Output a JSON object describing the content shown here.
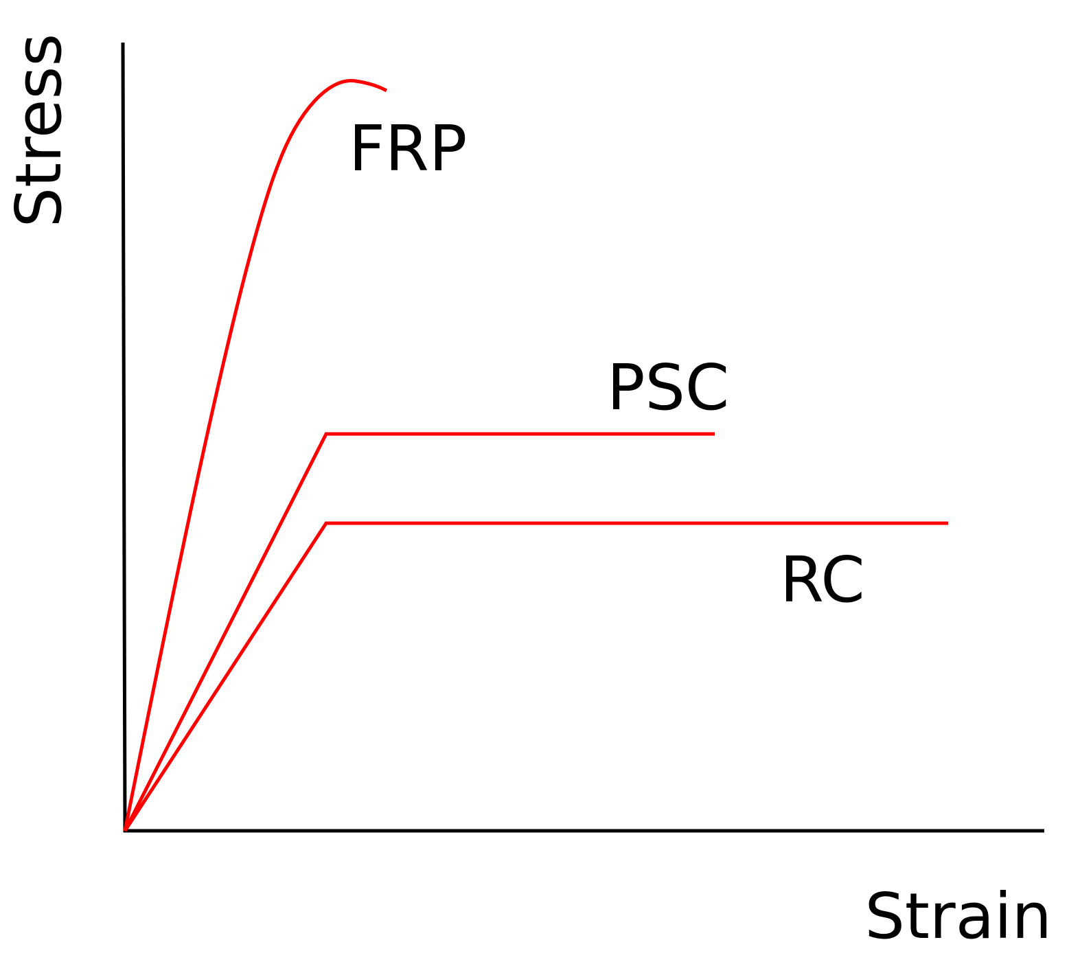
{
  "axes": {
    "y_label": "Stress",
    "x_label": "Strain"
  },
  "curves": [
    {
      "label": "FRP"
    },
    {
      "label": "PSC"
    },
    {
      "label": "RC"
    }
  ]
}
